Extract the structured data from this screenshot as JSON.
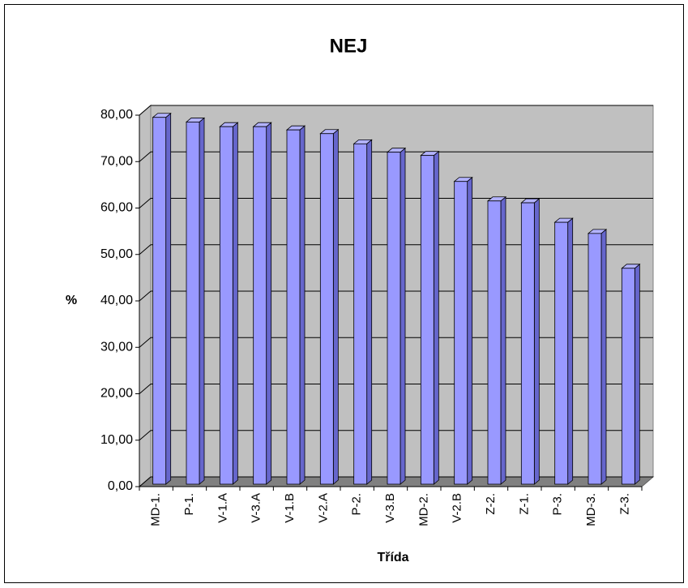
{
  "chart_data": {
    "type": "bar",
    "title": "NEJ",
    "x_label": "Třída",
    "y_label": "%",
    "categories": [
      "MD-1.",
      "P-1.",
      "V-1.A",
      "V-3.A",
      "V-1.B",
      "V-2.A",
      "P-2.",
      "V-3.B",
      "MD-2.",
      "V-2.B",
      "Z-2.",
      "Z-1.",
      "P-3.",
      "MD-3.",
      "Z-3."
    ],
    "values": [
      79,
      78,
      77,
      77,
      76.3,
      75.5,
      73.3,
      71.5,
      70.8,
      65.2,
      61,
      60.6,
      56.4,
      54,
      46.5
    ],
    "color": "#9999ff",
    "ylim": [
      0,
      80
    ],
    "yticks": [
      {
        "value": 0,
        "label": "0,00"
      },
      {
        "value": 10,
        "label": "10,00"
      },
      {
        "value": 20,
        "label": "20,00"
      },
      {
        "value": 30,
        "label": "30,00"
      },
      {
        "value": 40,
        "label": "40,00"
      },
      {
        "value": 50,
        "label": "50,00"
      },
      {
        "value": 60,
        "label": "60,00"
      },
      {
        "value": 70,
        "label": "70,00"
      },
      {
        "value": 80,
        "label": "80,00"
      }
    ],
    "grid": true
  }
}
